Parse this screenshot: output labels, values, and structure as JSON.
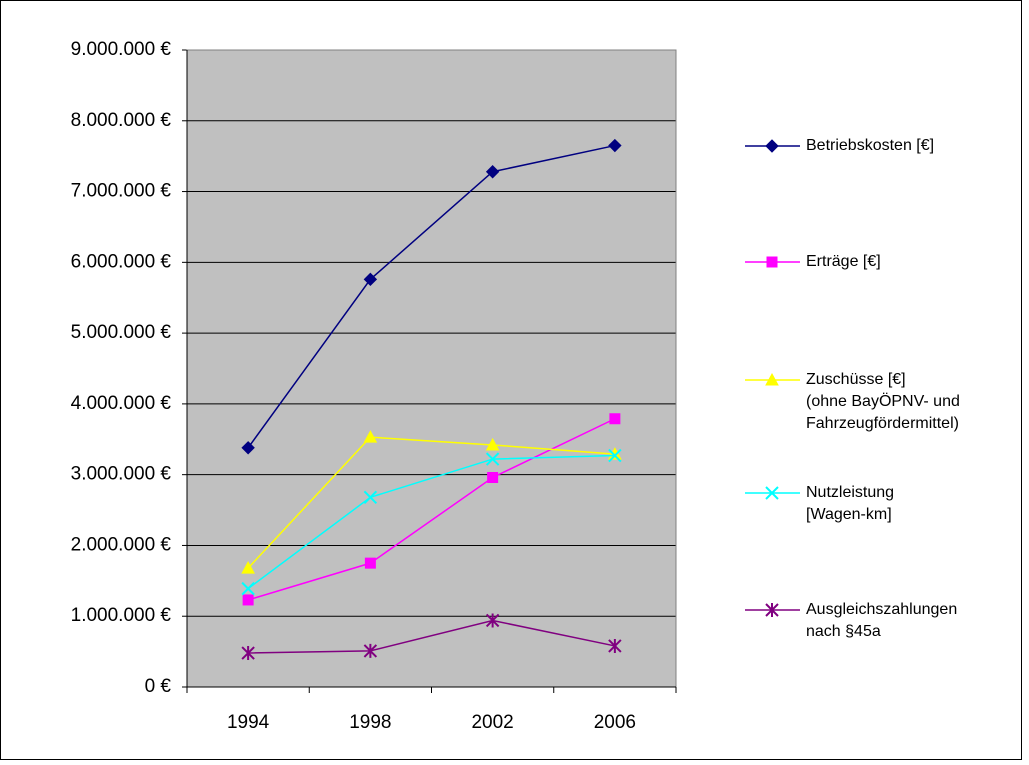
{
  "chart_data": {
    "type": "line",
    "categories": [
      "1994",
      "1998",
      "2002",
      "2006"
    ],
    "series": [
      {
        "name": "Betriebskosten [€]",
        "color": "#000080",
        "marker": "diamond",
        "values": [
          3380000,
          5760000,
          7280000,
          7650000
        ]
      },
      {
        "name": "Erträge [€]",
        "color": "#ff00ff",
        "marker": "square",
        "values": [
          1230000,
          1750000,
          2960000,
          3790000
        ]
      },
      {
        "name": "Zuschüsse [€]\n(ohne BayÖPNV- und\nFahrzeugfördermittel)",
        "color": "#ffff00",
        "marker": "triangle",
        "values": [
          1680000,
          3530000,
          3420000,
          3290000
        ]
      },
      {
        "name": "Nutzleistung\n[Wagen-km]",
        "color": "#00ffff",
        "marker": "x",
        "values": [
          1390000,
          2680000,
          3220000,
          3270000
        ]
      },
      {
        "name": "Ausgleichszahlungen\nnach §45a",
        "color": "#800080",
        "marker": "asterisk",
        "values": [
          480000,
          510000,
          940000,
          580000
        ]
      }
    ],
    "ylim": [
      0,
      9000000
    ],
    "yticks": [
      {
        "value": 0,
        "label": "0 €"
      },
      {
        "value": 1000000,
        "label": "1.000.000 €"
      },
      {
        "value": 2000000,
        "label": "2.000.000 €"
      },
      {
        "value": 3000000,
        "label": "3.000.000 €"
      },
      {
        "value": 4000000,
        "label": "4.000.000 €"
      },
      {
        "value": 5000000,
        "label": "5.000.000 €"
      },
      {
        "value": 6000000,
        "label": "6.000.000 €"
      },
      {
        "value": 7000000,
        "label": "7.000.000 €"
      },
      {
        "value": 8000000,
        "label": "8.000.000 €"
      },
      {
        "value": 9000000,
        "label": "9.000.000 €"
      }
    ],
    "grid": true,
    "plot_background": "#c0c0c0",
    "legend": "right"
  }
}
